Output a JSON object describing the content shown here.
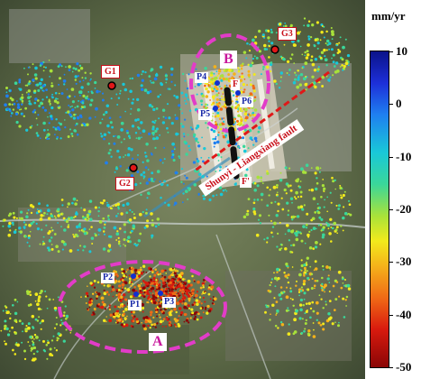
{
  "colorbar": {
    "unit": "mm/yr",
    "ticks": [
      "10",
      "0",
      "-10",
      "-20",
      "-30",
      "-40",
      "-50"
    ],
    "range": [
      -50,
      10
    ],
    "colors": [
      "#0b138a",
      "#1d2fd8",
      "#1f7ff0",
      "#19c8d8",
      "#3ad79a",
      "#a8e23a",
      "#f2ea1c",
      "#f5b21a",
      "#f06a16",
      "#d81a0e",
      "#8a0606"
    ]
  },
  "gnss": [
    "G1",
    "G2",
    "G3"
  ],
  "points": [
    "P1",
    "P2",
    "P3",
    "P4",
    "P5",
    "P6"
  ],
  "fault": {
    "name": "Shunyi - Liangxiang fault",
    "ends": [
      "F",
      "F'"
    ]
  },
  "regions": [
    "A",
    "B"
  ],
  "colors": {
    "region_ellipse": "#e23cc8",
    "fault_line": "#e01818",
    "gnss_label": "#c8101a",
    "point_label": "#1a2aa8"
  }
}
